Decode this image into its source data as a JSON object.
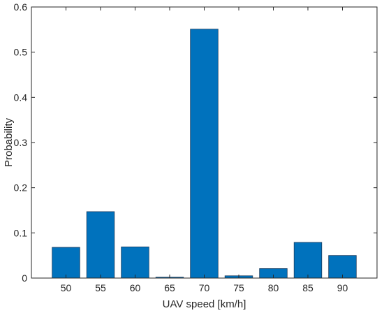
{
  "chart_data": {
    "type": "bar",
    "categories": [
      "50",
      "55",
      "60",
      "65",
      "70",
      "75",
      "80",
      "85",
      "90"
    ],
    "values": [
      0.068,
      0.147,
      0.069,
      0.002,
      0.551,
      0.005,
      0.021,
      0.079,
      0.05
    ],
    "xlabel": "UAV speed [km/h]",
    "ylabel": "Probability",
    "ylim": [
      0,
      0.6
    ],
    "yticks": [
      "0",
      "0.1",
      "0.2",
      "0.3",
      "0.4",
      "0.5",
      "0.6"
    ],
    "bar_color": "#0072BD",
    "bar_edge_color": "#1a3a5c",
    "grid": false,
    "legend": "none"
  }
}
